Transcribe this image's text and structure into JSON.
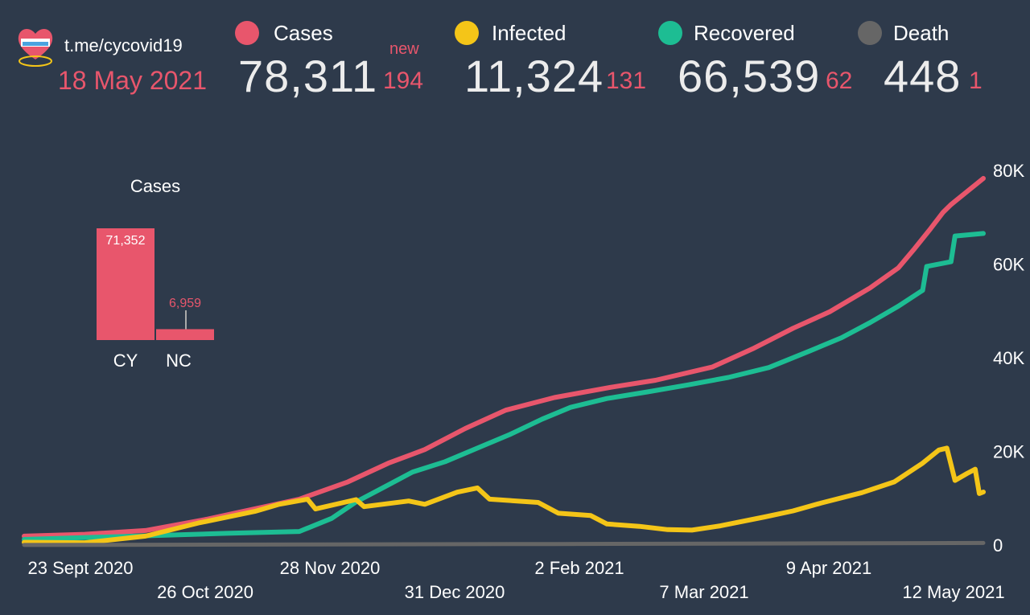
{
  "header": {
    "channel": "t.me/cycovid19",
    "date": "18 May 2021",
    "logo_icon": "cyprus-heart-logo-icon",
    "stats": [
      {
        "label": "Cases",
        "value": "78,311",
        "delta": "194",
        "new_label": "new",
        "color": "#e8566c"
      },
      {
        "label": "Infected",
        "value": "11,324",
        "delta": "131",
        "color": "#f4c518"
      },
      {
        "label": "Recovered",
        "value": "66,539",
        "delta": "62",
        "color": "#1dbd93"
      },
      {
        "label": "Death",
        "value": "448",
        "delta": "1",
        "color": "#666666"
      }
    ]
  },
  "chart_data": [
    {
      "type": "line",
      "x_type": "date",
      "x_ticks_row1": [
        "23 Sept 2020",
        "28 Nov 2020",
        "2 Feb 2021",
        "9 Apr 2021"
      ],
      "x_ticks_row2": [
        "26 Oct 2020",
        "31 Dec 2020",
        "7 Mar 2021",
        "12 May 2021"
      ],
      "y_ticks": [
        "0",
        "20K",
        "40K",
        "60K",
        "80K"
      ],
      "y_axis_side": "right",
      "ylim": [
        0,
        80000
      ],
      "xlim": [
        "2020-09-23",
        "2021-05-18"
      ],
      "grid": false,
      "series": [
        {
          "name": "Cases",
          "color": "#e8566c",
          "points": [
            [
              "2020-09-23",
              1900
            ],
            [
              "2020-10-08",
              2300
            ],
            [
              "2020-10-23",
              3100
            ],
            [
              "2020-11-07",
              5500
            ],
            [
              "2020-11-22",
              8300
            ],
            [
              "2020-11-30",
              9800
            ],
            [
              "2020-12-12",
              13500
            ],
            [
              "2020-12-22",
              17500
            ],
            [
              "2020-12-31",
              20400
            ],
            [
              "2021-01-10",
              24900
            ],
            [
              "2021-01-20",
              28800
            ],
            [
              "2021-02-01",
              31500
            ],
            [
              "2021-02-15",
              33700
            ],
            [
              "2021-02-26",
              35200
            ],
            [
              "2021-03-12",
              38000
            ],
            [
              "2021-03-22",
              41900
            ],
            [
              "2021-04-01",
              46300
            ],
            [
              "2021-04-10",
              49800
            ],
            [
              "2021-04-20",
              54900
            ],
            [
              "2021-04-27",
              59200
            ],
            [
              "2021-05-01",
              63300
            ],
            [
              "2021-05-05",
              67600
            ],
            [
              "2021-05-08",
              71000
            ],
            [
              "2021-05-10",
              72700
            ],
            [
              "2021-05-14",
              75500
            ],
            [
              "2021-05-18",
              78300
            ]
          ]
        },
        {
          "name": "Recovered",
          "color": "#1dbd93",
          "points": [
            [
              "2020-09-23",
              1200
            ],
            [
              "2020-11-12",
              2500
            ],
            [
              "2020-11-30",
              2900
            ],
            [
              "2020-12-08",
              5700
            ],
            [
              "2020-12-14",
              9200
            ],
            [
              "2020-12-21",
              12400
            ],
            [
              "2020-12-28",
              15600
            ],
            [
              "2021-01-05",
              17800
            ],
            [
              "2021-01-13",
              20700
            ],
            [
              "2021-01-21",
              23600
            ],
            [
              "2021-01-29",
              26900
            ],
            [
              "2021-02-05",
              29400
            ],
            [
              "2021-02-14",
              31300
            ],
            [
              "2021-02-24",
              32700
            ],
            [
              "2021-03-06",
              34200
            ],
            [
              "2021-03-16",
              35800
            ],
            [
              "2021-03-26",
              37900
            ],
            [
              "2021-04-05",
              41400
            ],
            [
              "2021-04-13",
              44300
            ],
            [
              "2021-04-20",
              47500
            ],
            [
              "2021-04-27",
              51000
            ],
            [
              "2021-05-03",
              54400
            ],
            [
              "2021-05-04",
              59500
            ],
            [
              "2021-05-10",
              60500
            ],
            [
              "2021-05-11",
              66000
            ],
            [
              "2021-05-18",
              66540
            ]
          ]
        },
        {
          "name": "Infected",
          "color": "#f4c518",
          "points": [
            [
              "2020-09-23",
              600
            ],
            [
              "2020-10-08",
              500
            ],
            [
              "2020-10-23",
              1900
            ],
            [
              "2020-11-05",
              4700
            ],
            [
              "2020-11-19",
              7200
            ],
            [
              "2020-11-25",
              8700
            ],
            [
              "2020-12-02",
              9800
            ],
            [
              "2020-12-04",
              7700
            ],
            [
              "2020-12-14",
              9700
            ],
            [
              "2020-12-16",
              8200
            ],
            [
              "2020-12-27",
              9400
            ],
            [
              "2020-12-31",
              8700
            ],
            [
              "2021-01-08",
              11300
            ],
            [
              "2021-01-13",
              12200
            ],
            [
              "2021-01-16",
              9800
            ],
            [
              "2021-01-28",
              9100
            ],
            [
              "2021-02-02",
              6800
            ],
            [
              "2021-02-10",
              6300
            ],
            [
              "2021-02-14",
              4500
            ],
            [
              "2021-02-22",
              4000
            ],
            [
              "2021-03-01",
              3300
            ],
            [
              "2021-03-07",
              3200
            ],
            [
              "2021-03-14",
              4100
            ],
            [
              "2021-03-25",
              6000
            ],
            [
              "2021-04-01",
              7300
            ],
            [
              "2021-04-08",
              9000
            ],
            [
              "2021-04-18",
              11200
            ],
            [
              "2021-04-26",
              13500
            ],
            [
              "2021-05-03",
              17500
            ],
            [
              "2021-05-07",
              20300
            ],
            [
              "2021-05-09",
              20700
            ],
            [
              "2021-05-11",
              13800
            ],
            [
              "2021-05-14",
              15300
            ],
            [
              "2021-05-16",
              16200
            ],
            [
              "2021-05-17",
              11000
            ],
            [
              "2021-05-18",
              11324
            ]
          ]
        },
        {
          "name": "Death",
          "color": "#666666",
          "points": [
            [
              "2020-09-23",
              20
            ],
            [
              "2020-12-01",
              120
            ],
            [
              "2021-02-01",
              230
            ],
            [
              "2021-04-01",
              340
            ],
            [
              "2021-05-18",
              448
            ]
          ]
        }
      ]
    },
    {
      "type": "bar",
      "title": "Cases",
      "categories": [
        "CY",
        "NC"
      ],
      "values": [
        71352,
        6959
      ],
      "value_labels": [
        "71,352",
        "6,959"
      ],
      "color": "#e8566c"
    }
  ]
}
